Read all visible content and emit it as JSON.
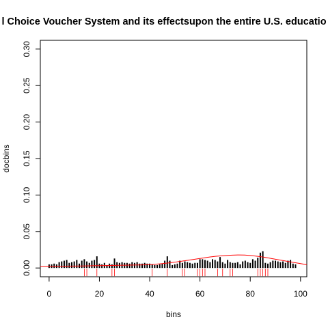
{
  "chart_data": {
    "type": "bar",
    "title": "l Choice Voucher System and its effectsupon the entire U.S. educatio",
    "xlabel": "bins",
    "ylabel": "docbins",
    "xlim": [
      -3.5,
      102.5
    ],
    "ylim": [
      -0.012,
      0.312
    ],
    "x_ticks": [
      0,
      20,
      40,
      60,
      80,
      100
    ],
    "x_tick_labels": [
      "0",
      "20",
      "40",
      "60",
      "80",
      "100"
    ],
    "y_ticks": [
      0.0,
      0.05,
      0.1,
      0.15,
      0.2,
      0.25,
      0.3
    ],
    "y_tick_labels": [
      "0.00",
      "0.05",
      "0.10",
      "0.15",
      "0.20",
      "0.25",
      "0.30"
    ],
    "bar_color": "#000000",
    "curve_color": "#ff0000",
    "rug_color": "#ff0000",
    "grid": false,
    "bars": {
      "x": [
        0,
        1,
        2,
        3,
        4,
        5,
        6,
        7,
        8,
        9,
        10,
        11,
        12,
        13,
        14,
        15,
        16,
        17,
        18,
        19,
        20,
        21,
        22,
        23,
        24,
        25,
        26,
        27,
        28,
        29,
        30,
        31,
        32,
        33,
        34,
        35,
        36,
        37,
        38,
        39,
        40,
        41,
        42,
        43,
        44,
        45,
        46,
        47,
        48,
        49,
        50,
        51,
        52,
        53,
        54,
        55,
        56,
        57,
        58,
        59,
        60,
        61,
        62,
        63,
        64,
        65,
        66,
        67,
        68,
        69,
        70,
        71,
        72,
        73,
        74,
        75,
        76,
        77,
        78,
        79,
        80,
        81,
        82,
        83,
        84,
        85,
        86,
        87,
        88,
        89,
        90,
        91,
        92,
        93,
        94,
        95,
        96,
        97,
        98
      ],
      "values": [
        0.005,
        0.005,
        0.006,
        0.005,
        0.008,
        0.009,
        0.01,
        0.011,
        0.007,
        0.008,
        0.009,
        0.011,
        0.006,
        0.01,
        0.012,
        0.009,
        0.007,
        0.01,
        0.011,
        0.016,
        0.006,
        0.005,
        0.007,
        0.004,
        0.006,
        0.005,
        0.013,
        0.008,
        0.007,
        0.008,
        0.007,
        0.007,
        0.006,
        0.008,
        0.007,
        0.008,
        0.006,
        0.006,
        0.007,
        0.006,
        0.006,
        0.005,
        0.004,
        0.004,
        0.005,
        0.006,
        0.01,
        0.016,
        0.01,
        0.004,
        0.005,
        0.006,
        0.01,
        0.007,
        0.009,
        0.008,
        0.007,
        0.006,
        0.007,
        0.007,
        0.012,
        0.012,
        0.011,
        0.01,
        0.008,
        0.012,
        0.011,
        0.009,
        0.015,
        0.008,
        0.006,
        0.011,
        0.008,
        0.007,
        0.007,
        0.008,
        0.005,
        0.009,
        0.01,
        0.008,
        0.007,
        0.012,
        0.01,
        0.014,
        0.021,
        0.023,
        0.007,
        0.006,
        0.008,
        0.01,
        0.01,
        0.009,
        0.008,
        0.009,
        0.007,
        0.01,
        0.011,
        0.006,
        0.005
      ]
    },
    "curve": {
      "type": "density",
      "x": [
        -3.5,
        0,
        5,
        10,
        15,
        20,
        25,
        30,
        35,
        40,
        45,
        50,
        55,
        60,
        65,
        70,
        75,
        80,
        85,
        90,
        95,
        100,
        102.5
      ],
      "y": [
        0.002,
        0.0022,
        0.0024,
        0.0026,
        0.0029,
        0.0032,
        0.0035,
        0.0038,
        0.0041,
        0.0046,
        0.006,
        0.008,
        0.0105,
        0.013,
        0.0155,
        0.017,
        0.0178,
        0.0172,
        0.015,
        0.012,
        0.009,
        0.006,
        0.0045
      ]
    },
    "rug": {
      "x": [
        14,
        15,
        19,
        25,
        26,
        41,
        47,
        53,
        54,
        59,
        60,
        61,
        62,
        67,
        69,
        72,
        73,
        83,
        84,
        85,
        86,
        87
      ]
    }
  }
}
